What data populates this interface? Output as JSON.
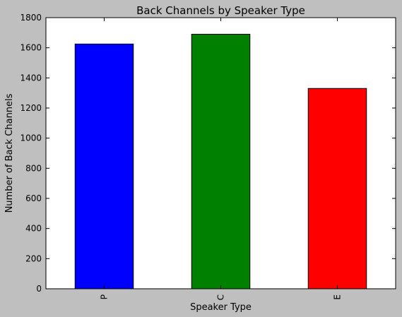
{
  "chart_data": {
    "type": "bar",
    "title": "Back Channels by Speaker Type",
    "xlabel": "Speaker Type",
    "ylabel": "Number of Back Channels",
    "categories": [
      "P",
      "C",
      "E"
    ],
    "values": [
      1625,
      1690,
      1330
    ],
    "bar_colors": [
      "#0000ff",
      "#008000",
      "#ff0000"
    ],
    "ylim": [
      0,
      1800
    ],
    "yticks": [
      0,
      200,
      400,
      600,
      800,
      1000,
      1200,
      1400,
      1600,
      1800
    ],
    "grid": false,
    "legend": "none",
    "background": "#ffffff",
    "figure_background": "#bfbfbf"
  }
}
